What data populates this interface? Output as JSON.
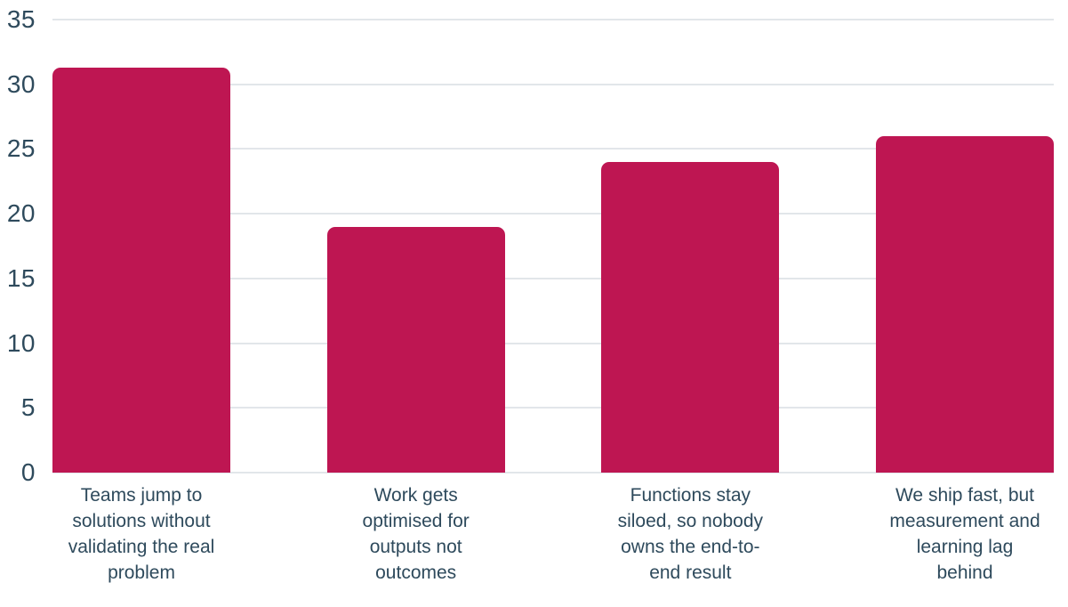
{
  "chart_data": {
    "type": "bar",
    "title": "",
    "xlabel": "",
    "ylabel": "",
    "categories": [
      "Teams jump to solutions without validating the real problem",
      "Work gets optimised for outputs not outcomes",
      "Functions stay siloed, so nobody owns the end-to-end result",
      "We ship fast, but measurement and learning lag behind"
    ],
    "category_lines": [
      [
        "Teams jump to",
        "solutions without",
        "validating the real",
        "problem"
      ],
      [
        "Work gets",
        "optimised for",
        "outputs not",
        "outcomes"
      ],
      [
        "Functions stay",
        "siloed, so nobody",
        "owns the end-to-",
        "end result"
      ],
      [
        "We ship fast, but",
        "measurement and",
        "learning lag",
        "behind"
      ]
    ],
    "values": [
      31.3,
      19,
      24,
      26
    ],
    "yticks": [
      0,
      5,
      10,
      15,
      20,
      25,
      30,
      35
    ],
    "ylim": [
      0,
      35
    ],
    "grid": true,
    "legend_position": "none",
    "colors": {
      "bar": "#BE1652",
      "axis_text": "#2E4A5C",
      "gridline": "#E2E6EA",
      "background": "#FFFFFF"
    }
  }
}
